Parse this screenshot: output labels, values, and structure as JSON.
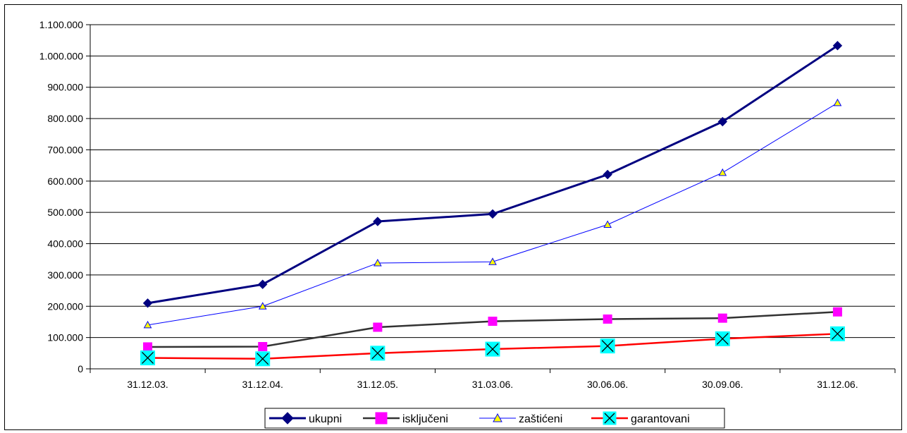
{
  "chart_data": {
    "type": "line",
    "title": "",
    "xlabel": "",
    "ylabel": "",
    "categories": [
      "31.12.03.",
      "31.12.04.",
      "31.12.05.",
      "31.03.06.",
      "30.06.06.",
      "30.09.06.",
      "31.12.06."
    ],
    "ylim": [
      0,
      1100000
    ],
    "y_ticks": [
      0,
      100000,
      200000,
      300000,
      400000,
      500000,
      600000,
      700000,
      800000,
      900000,
      1000000,
      1100000
    ],
    "y_tick_labels": [
      "0",
      "100.000",
      "200.000",
      "300.000",
      "400.000",
      "500.000",
      "600.000",
      "700.000",
      "800.000",
      "900.000",
      "1.000.000",
      "1.100.000"
    ],
    "grid": "horizontal",
    "legend_position": "bottom",
    "series": [
      {
        "name": "ukupni",
        "values": [
          210000,
          270000,
          471000,
          495000,
          621000,
          790000,
          1033000
        ],
        "color": "#000080",
        "marker": "diamond"
      },
      {
        "name": "isključeni",
        "values": [
          70000,
          71000,
          133000,
          152000,
          159000,
          162000,
          182000
        ],
        "color": "#333333",
        "marker": "square",
        "marker_color": "#ff00ff"
      },
      {
        "name": "zaštićeni",
        "values": [
          140000,
          200000,
          338000,
          342000,
          461000,
          627000,
          850000
        ],
        "color": "#0000ff",
        "marker": "triangle",
        "marker_color": "#ffff00"
      },
      {
        "name": "garantovani",
        "values": [
          35000,
          32000,
          50000,
          63000,
          73000,
          96000,
          112000
        ],
        "color": "#ff0000",
        "marker": "x-box",
        "marker_color": "#00ffff"
      }
    ]
  }
}
